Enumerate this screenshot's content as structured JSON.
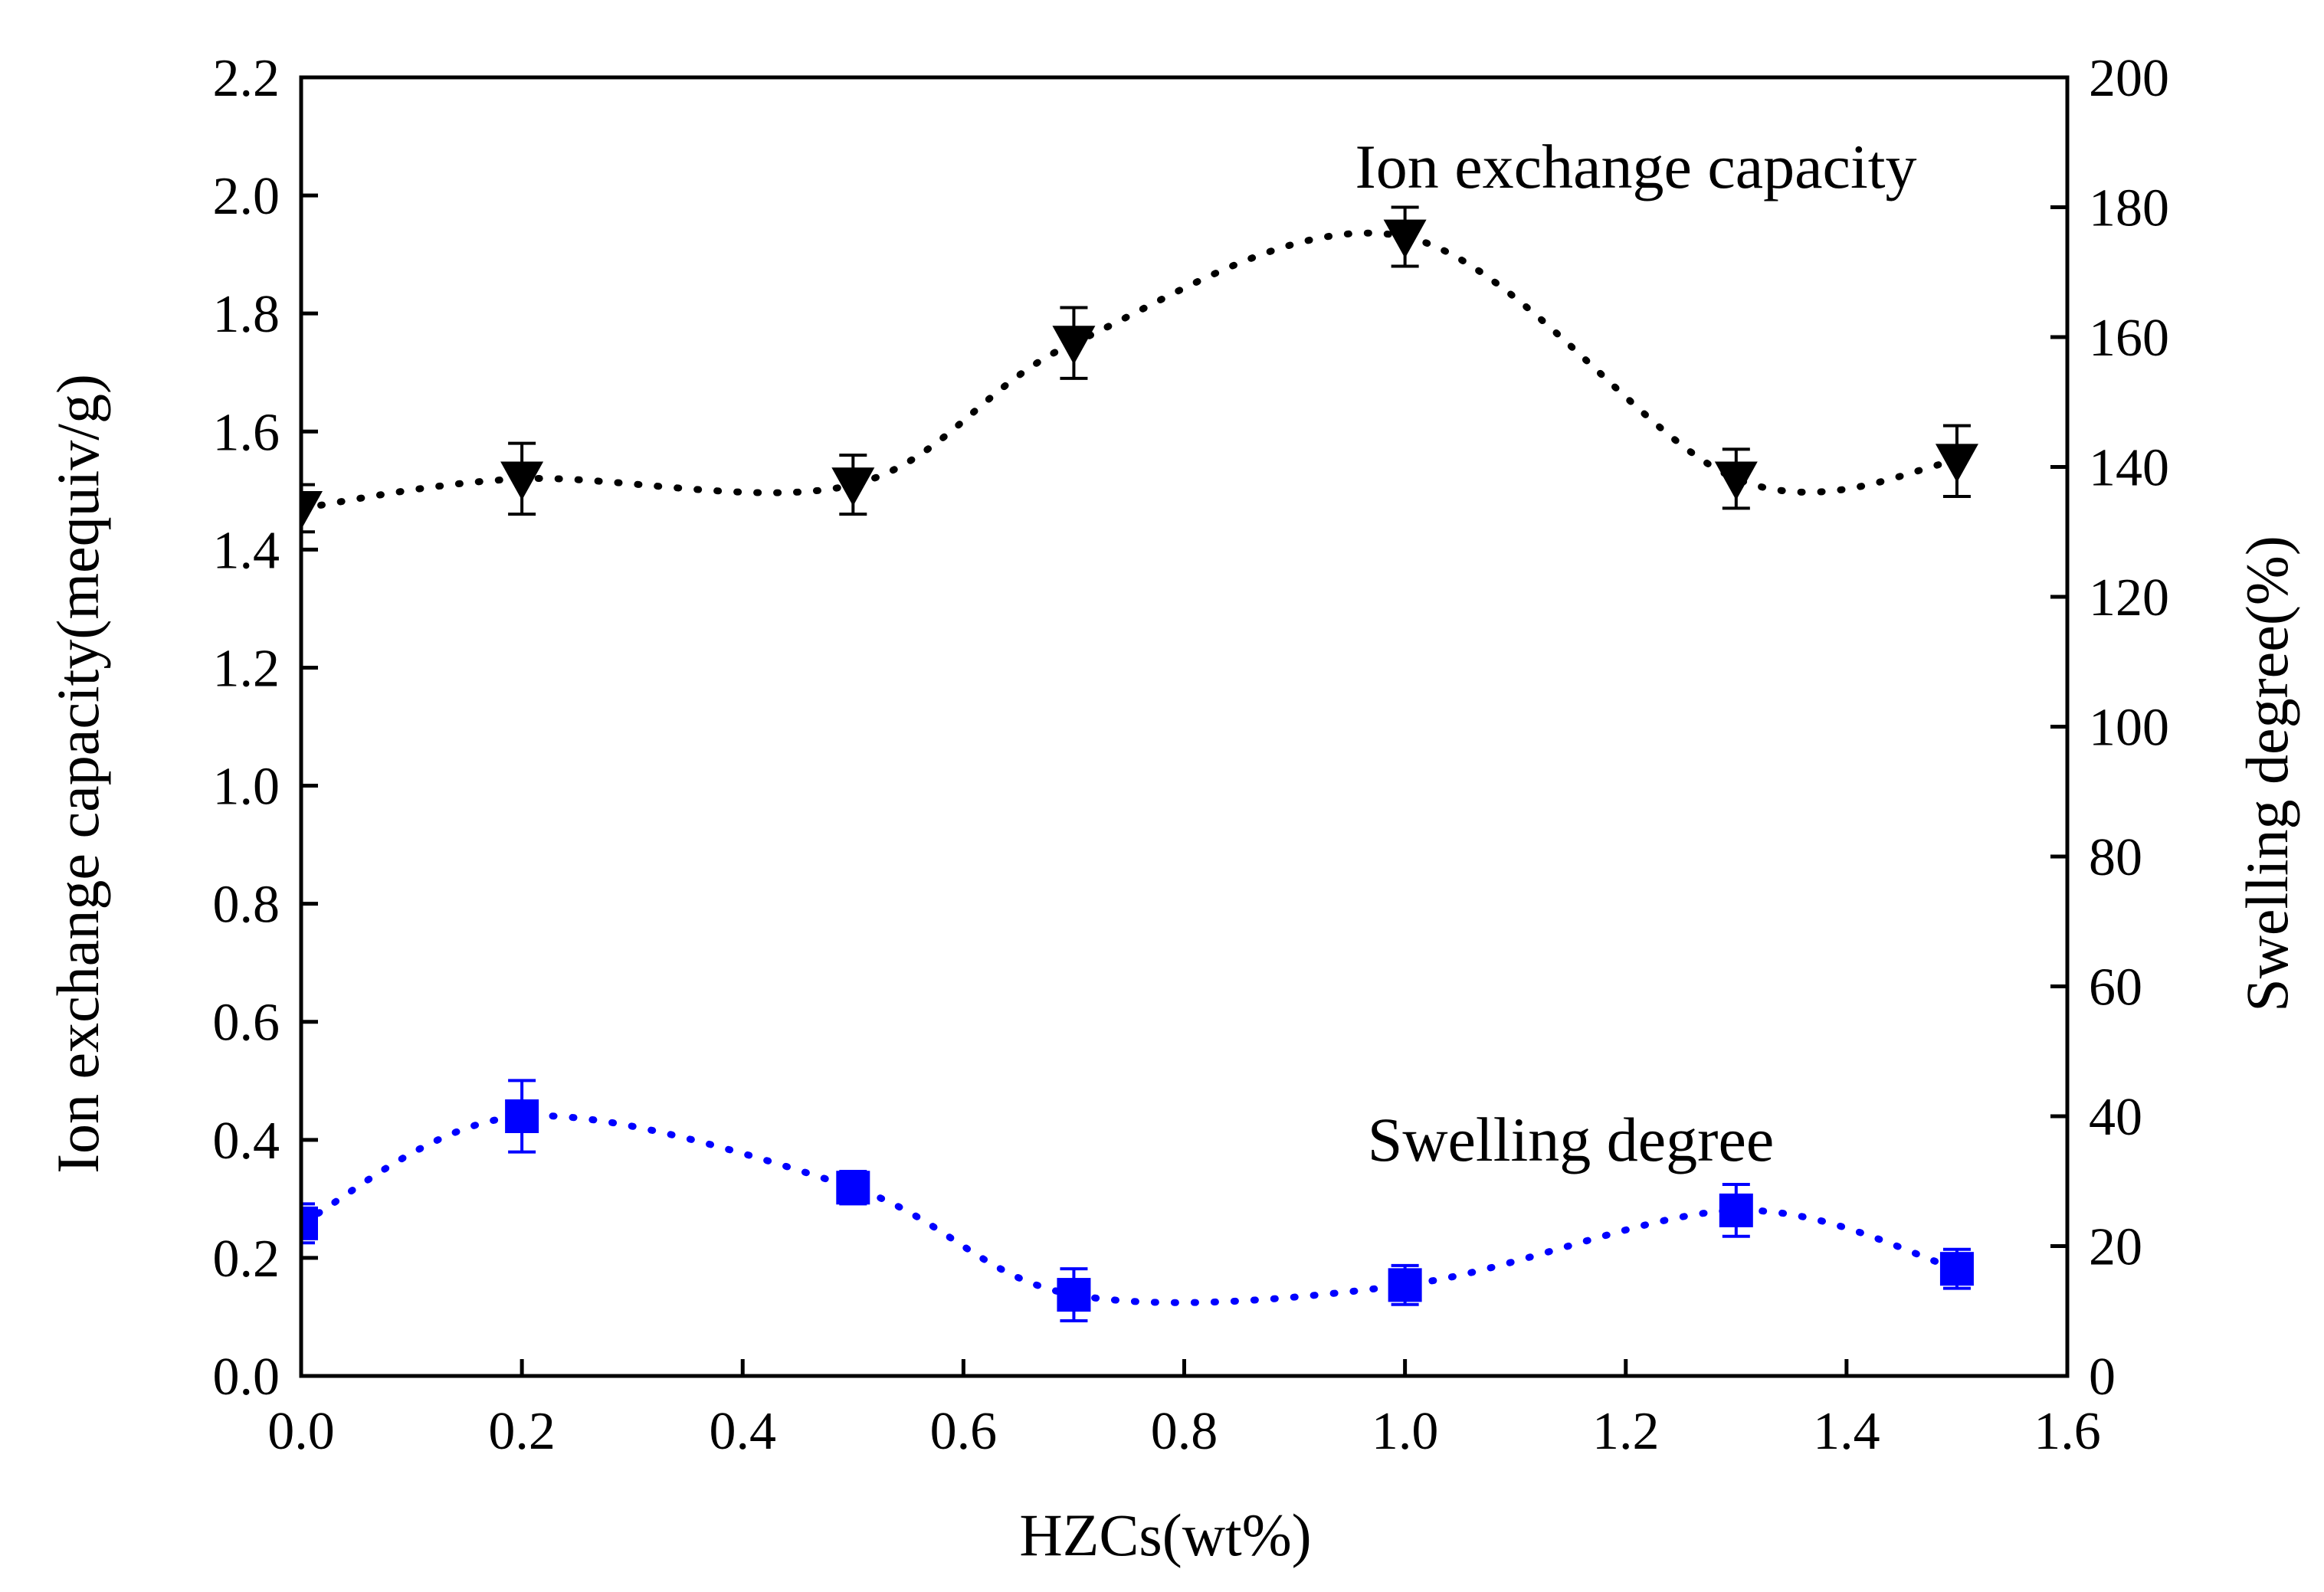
{
  "chart_data": {
    "type": "scatter",
    "x_axis": {
      "label": "HZCs(wt%)",
      "range": [
        0.0,
        1.6
      ],
      "ticks": [
        "0.0",
        "0.2",
        "0.4",
        "0.6",
        "0.8",
        "1.0",
        "1.2",
        "1.4",
        "1.6"
      ]
    },
    "y_left_axis": {
      "label": "Ion exchange capacity(mequiv/g)",
      "range": [
        0.0,
        2.2
      ],
      "ticks": [
        "0.0",
        "0.2",
        "0.4",
        "0.6",
        "0.8",
        "1.0",
        "1.2",
        "1.4",
        "1.6",
        "1.8",
        "2.0",
        "2.2"
      ]
    },
    "y_right_axis": {
      "label": "Swelling degree(%)",
      "range": [
        0,
        200
      ],
      "ticks": [
        "0",
        "20",
        "40",
        "60",
        "80",
        "100",
        "120",
        "140",
        "160",
        "180",
        "200"
      ]
    },
    "x": [
      0.0,
      0.2,
      0.5,
      0.7,
      1.0,
      1.3,
      1.5
    ],
    "series": [
      {
        "name": "Ion exchange capacity",
        "axis": "left",
        "marker": "triangle-down",
        "line_style": "dotted",
        "color": "#000000",
        "values": [
          1.47,
          1.52,
          1.51,
          1.75,
          1.93,
          1.52,
          1.55
        ],
        "errors": [
          0.04,
          0.06,
          0.05,
          0.06,
          0.05,
          0.05,
          0.06
        ]
      },
      {
        "name": "Swelling degree",
        "axis": "right",
        "marker": "square",
        "line_style": "dotted",
        "color": "#0000ff",
        "values": [
          23.5,
          40.0,
          29.0,
          12.5,
          14.0,
          25.5,
          16.5
        ],
        "errors": [
          3.0,
          5.5,
          2.5,
          4.0,
          3.0,
          4.0,
          3.0
        ]
      }
    ],
    "annotations": {
      "ion_exchange_label": "Ion exchange capacity",
      "swelling_label": "Swelling degree"
    }
  }
}
